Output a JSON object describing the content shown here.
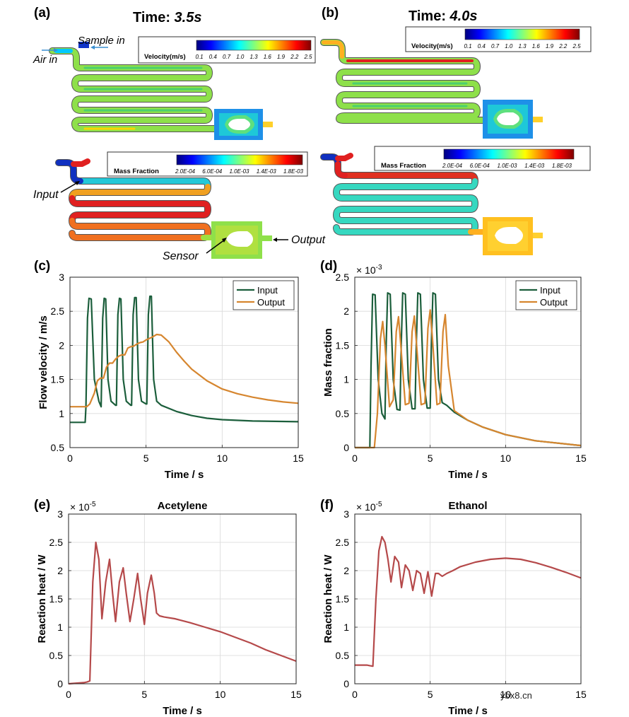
{
  "colors": {
    "input": "#1b5e3b",
    "output": "#d6862f",
    "heat": "#b5494a",
    "grid": "#d9d9d9",
    "jet": [
      "#00007f",
      "#0000ff",
      "#007fff",
      "#00ffff",
      "#7fff7f",
      "#ffff00",
      "#ff7f00",
      "#ff0000",
      "#7f0000"
    ]
  },
  "panel_labels": {
    "a": "(a)",
    "b": "(b)",
    "c": "(c)",
    "d": "(d)",
    "e": "(e)",
    "f": "(f)"
  },
  "sim": {
    "time_a_label": "Time: ",
    "time_a_value": "3.5s",
    "time_b_label": "Time: ",
    "time_b_value": "4.0s",
    "velocity_title": "Velocity(m/s)",
    "velocity_ticks": [
      "0.1",
      "0.4",
      "0.7",
      "1.0",
      "1.3",
      "1.6",
      "1.9",
      "2.2",
      "2.5"
    ],
    "mass_title": "Mass Fraction",
    "mass_ticks": [
      "2.0E-04",
      "6.0E-04",
      "1.0E-03",
      "1.4E-03",
      "1.8E-03"
    ],
    "annotations": {
      "sample_in": "Sample in",
      "air_in": "Air in",
      "input": "Input",
      "output": "Output",
      "sensor": "Sensor"
    }
  },
  "chart_data": [
    {
      "id": "c",
      "type": "line",
      "xlabel": "Time / s",
      "ylabel": "Flow velocity / m/s",
      "xlim": [
        0,
        15
      ],
      "ylim": [
        0.5,
        3
      ],
      "xticks": [
        "0",
        "5",
        "10",
        "15"
      ],
      "yticks": [
        "0.5",
        "1",
        "1.5",
        "2",
        "2.5",
        "3"
      ],
      "grid": true,
      "legend": "top-right",
      "series": [
        {
          "name": "Input",
          "x": [
            0,
            1,
            1.05,
            1.15,
            1.25,
            1.4,
            1.6,
            1.9,
            2.05,
            2.15,
            2.25,
            2.35,
            2.5,
            2.7,
            3.0,
            3.05,
            3.15,
            3.25,
            3.35,
            3.5,
            3.7,
            4.0,
            4.05,
            4.15,
            4.25,
            4.35,
            4.5,
            4.7,
            5.0,
            5.05,
            5.15,
            5.25,
            5.35,
            5.5,
            5.7,
            6.0,
            7,
            8,
            9,
            10,
            12,
            15
          ],
          "y": [
            0.87,
            0.87,
            1.1,
            2.4,
            2.69,
            2.68,
            1.5,
            1.18,
            1.1,
            2.4,
            2.69,
            2.68,
            1.5,
            1.18,
            1.12,
            1.12,
            2.45,
            2.69,
            2.68,
            1.5,
            1.18,
            1.12,
            1.12,
            2.45,
            2.7,
            2.7,
            1.5,
            1.18,
            1.14,
            1.14,
            2.45,
            2.72,
            2.72,
            1.5,
            1.18,
            1.12,
            1.03,
            0.97,
            0.93,
            0.91,
            0.89,
            0.88
          ]
        },
        {
          "name": "Output",
          "x": [
            0,
            1.1,
            1.3,
            1.6,
            1.8,
            2.0,
            2.2,
            2.4,
            2.6,
            2.8,
            3.0,
            3.2,
            3.4,
            3.6,
            3.8,
            4.0,
            4.2,
            4.4,
            4.6,
            4.8,
            5.0,
            5.2,
            5.4,
            5.7,
            6.0,
            6.5,
            7,
            7.5,
            8,
            9,
            10,
            11,
            12,
            13,
            14,
            15
          ],
          "y": [
            1.1,
            1.1,
            1.14,
            1.3,
            1.48,
            1.52,
            1.52,
            1.68,
            1.74,
            1.74,
            1.8,
            1.84,
            1.86,
            1.86,
            1.96,
            1.98,
            1.99,
            2.02,
            2.04,
            2.05,
            2.08,
            2.1,
            2.12,
            2.16,
            2.15,
            2.05,
            1.9,
            1.77,
            1.65,
            1.48,
            1.36,
            1.29,
            1.24,
            1.2,
            1.17,
            1.15
          ]
        }
      ]
    },
    {
      "id": "d",
      "type": "line",
      "xlabel": "Time / s",
      "ylabel": "Mass fraction",
      "exponent_label": "× 10",
      "exponent_power": "-3",
      "xlim": [
        0,
        15
      ],
      "ylim": [
        0,
        2.5
      ],
      "xticks": [
        "0",
        "5",
        "10",
        "15"
      ],
      "yticks": [
        "0",
        "0.5",
        "1",
        "1.5",
        "2",
        "2.5"
      ],
      "grid": true,
      "legend": "top-right",
      "series": [
        {
          "name": "Input",
          "x": [
            0,
            1,
            1.08,
            1.18,
            1.35,
            1.55,
            1.8,
            2.0,
            2.08,
            2.18,
            2.35,
            2.55,
            2.8,
            3.0,
            3.08,
            3.18,
            3.35,
            3.55,
            3.8,
            4.0,
            4.08,
            4.18,
            4.35,
            4.55,
            4.8,
            5.0,
            5.08,
            5.18,
            5.35,
            5.55,
            5.8,
            6.1,
            6.6,
            7.5,
            8.5,
            10,
            12,
            15
          ],
          "y": [
            0,
            0,
            1.2,
            2.25,
            2.24,
            1.0,
            0.5,
            0.42,
            1.5,
            2.27,
            2.25,
            1.0,
            0.56,
            0.55,
            1.5,
            2.27,
            2.25,
            1.0,
            0.57,
            0.57,
            1.5,
            2.27,
            2.25,
            1.0,
            0.58,
            0.58,
            1.5,
            2.27,
            2.25,
            1.0,
            0.66,
            0.62,
            0.52,
            0.4,
            0.3,
            0.19,
            0.1,
            0.03
          ]
        },
        {
          "name": "Output",
          "x": [
            0,
            1.3,
            1.5,
            1.7,
            1.85,
            2.0,
            2.3,
            2.55,
            2.75,
            2.9,
            3.05,
            3.35,
            3.6,
            3.8,
            3.95,
            4.1,
            4.4,
            4.65,
            4.85,
            5.0,
            5.15,
            5.45,
            5.65,
            5.85,
            6.0,
            6.2,
            6.6,
            7.5,
            8.5,
            10,
            12,
            15
          ],
          "y": [
            0,
            0,
            0.5,
            1.6,
            1.85,
            1.5,
            0.6,
            0.7,
            1.7,
            1.92,
            1.5,
            0.63,
            0.65,
            1.7,
            1.93,
            1.5,
            0.63,
            0.65,
            1.75,
            2.02,
            1.6,
            0.63,
            0.65,
            1.7,
            1.95,
            1.2,
            0.54,
            0.4,
            0.3,
            0.19,
            0.1,
            0.03
          ]
        }
      ]
    },
    {
      "id": "e",
      "type": "line",
      "title": "Acetylene",
      "xlabel": "Time / s",
      "ylabel": "Reaction heat / W",
      "exponent_label": "× 10",
      "exponent_power": "-5",
      "xlim": [
        0,
        15
      ],
      "ylim": [
        0,
        3
      ],
      "xticks": [
        "0",
        "5",
        "10",
        "15"
      ],
      "yticks": [
        "0",
        "0.5",
        "1",
        "1.5",
        "2",
        "2.5",
        "3"
      ],
      "grid": true,
      "series": [
        {
          "name": "",
          "x": [
            0,
            1.0,
            1.2,
            1.4,
            1.6,
            1.8,
            2.0,
            2.2,
            2.45,
            2.7,
            2.9,
            3.1,
            3.35,
            3.6,
            3.8,
            4.05,
            4.3,
            4.55,
            4.75,
            5.0,
            5.2,
            5.45,
            5.65,
            5.8,
            6.0,
            6.3,
            7,
            8,
            9,
            10,
            11,
            12,
            13,
            14,
            15
          ],
          "y": [
            0,
            0.02,
            0.03,
            0.05,
            1.8,
            2.5,
            2.2,
            1.15,
            1.8,
            2.2,
            1.6,
            1.1,
            1.8,
            2.05,
            1.6,
            1.1,
            1.5,
            1.95,
            1.5,
            1.05,
            1.6,
            1.92,
            1.6,
            1.25,
            1.2,
            1.18,
            1.15,
            1.08,
            1.0,
            0.92,
            0.82,
            0.72,
            0.6,
            0.5,
            0.4
          ]
        }
      ]
    },
    {
      "id": "f",
      "type": "line",
      "title": "Ethanol",
      "xlabel": "Time / s",
      "ylabel": "Reaction heat / W",
      "exponent_label": "× 10",
      "exponent_power": "-5",
      "xlim": [
        0,
        15
      ],
      "ylim": [
        0,
        3
      ],
      "xticks": [
        "0",
        "5",
        "10",
        "15"
      ],
      "yticks": [
        "0",
        "0.5",
        "1",
        "1.5",
        "2",
        "2.5",
        "3"
      ],
      "grid": true,
      "series": [
        {
          "name": "",
          "x": [
            0,
            0.8,
            1.0,
            1.2,
            1.4,
            1.6,
            1.8,
            2.0,
            2.2,
            2.4,
            2.65,
            2.9,
            3.1,
            3.35,
            3.6,
            3.85,
            4.1,
            4.35,
            4.6,
            4.85,
            5.1,
            5.35,
            5.55,
            5.8,
            6.1,
            6.5,
            7,
            8,
            9,
            10,
            11,
            12,
            13,
            14,
            15
          ],
          "y": [
            0.33,
            0.33,
            0.32,
            0.31,
            1.5,
            2.35,
            2.6,
            2.5,
            2.2,
            1.8,
            2.25,
            2.15,
            1.7,
            2.1,
            2.0,
            1.65,
            2.0,
            1.95,
            1.6,
            1.98,
            1.55,
            1.95,
            1.95,
            1.9,
            1.95,
            2.0,
            2.07,
            2.15,
            2.2,
            2.22,
            2.2,
            2.14,
            2.06,
            1.97,
            1.87
          ]
        }
      ]
    }
  ],
  "watermark": "ybx8.cn"
}
